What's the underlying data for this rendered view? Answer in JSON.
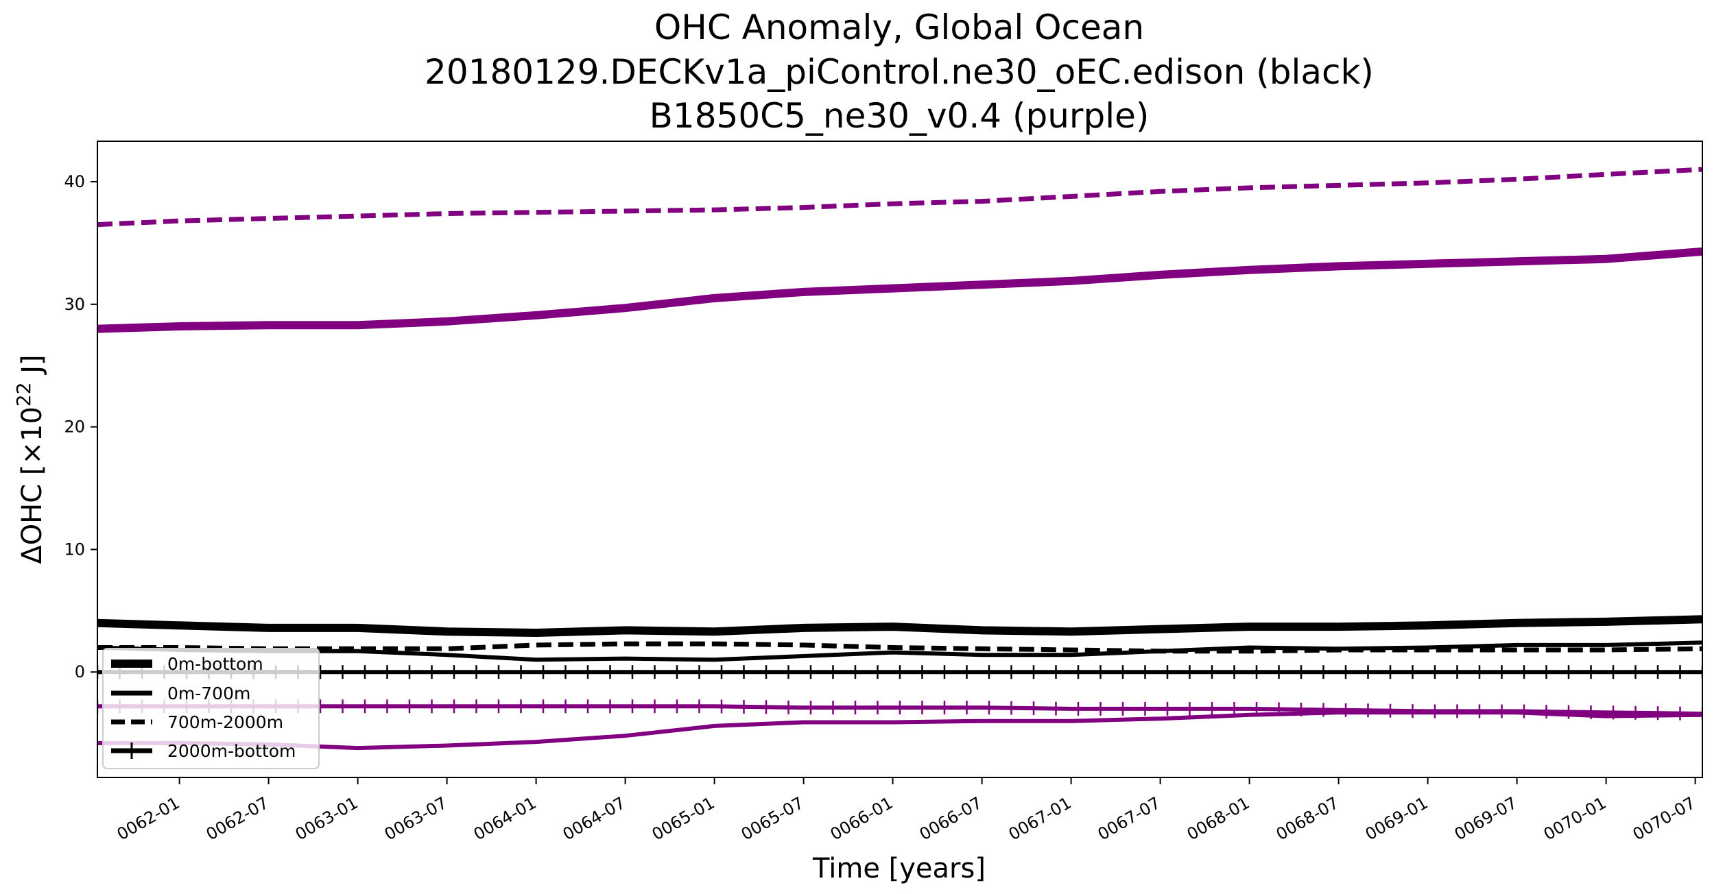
{
  "chart_data": {
    "type": "line",
    "title_lines": [
      "OHC Anomaly, Global Ocean",
      "20180129.DECKv1a_piControl.ne30_oEC.edison (black)",
      "B1850C5_ne30_v0.4 (purple)"
    ],
    "xlabel": "Time [years]",
    "ylabel_parts": {
      "main": "ΔOHC [×10",
      "sup": "22",
      "end": " J]"
    },
    "xlim": [
      61.54,
      70.54
    ],
    "ylim": [
      -8.6,
      43.3
    ],
    "x_ticks": [
      {
        "label": "0062-01",
        "value": 62.0
      },
      {
        "label": "0062-07",
        "value": 62.5
      },
      {
        "label": "0063-01",
        "value": 63.0
      },
      {
        "label": "0063-07",
        "value": 63.5
      },
      {
        "label": "0064-01",
        "value": 64.0
      },
      {
        "label": "0064-07",
        "value": 64.5
      },
      {
        "label": "0065-01",
        "value": 65.0
      },
      {
        "label": "0065-07",
        "value": 65.5
      },
      {
        "label": "0066-01",
        "value": 66.0
      },
      {
        "label": "0066-07",
        "value": 66.5
      },
      {
        "label": "0067-01",
        "value": 67.0
      },
      {
        "label": "0067-07",
        "value": 67.5
      },
      {
        "label": "0068-01",
        "value": 68.0
      },
      {
        "label": "0068-07",
        "value": 68.5
      },
      {
        "label": "0069-01",
        "value": 69.0
      },
      {
        "label": "0069-07",
        "value": 69.5
      },
      {
        "label": "0070-01",
        "value": 70.0
      },
      {
        "label": "0070-07",
        "value": 70.5
      }
    ],
    "y_ticks": [
      {
        "label": "0",
        "value": 0
      },
      {
        "label": "10",
        "value": 10
      },
      {
        "label": "20",
        "value": 20
      },
      {
        "label": "30",
        "value": 30
      },
      {
        "label": "40",
        "value": 40
      }
    ],
    "grid": false,
    "legend_position": "bottom-left",
    "legend": [
      {
        "label": "0m-bottom",
        "style": "solid-thick"
      },
      {
        "label": "0m-700m",
        "style": "solid"
      },
      {
        "label": "700m-2000m",
        "style": "dashed"
      },
      {
        "label": "2000m-bottom",
        "style": "plus-marker"
      }
    ],
    "colors": {
      "black": "#000000",
      "purple": "#800080"
    },
    "series": [
      {
        "group": "purple",
        "style": "dashed",
        "x": [
          61.54,
          62.0,
          62.5,
          63.0,
          63.5,
          64.0,
          64.5,
          65.0,
          65.5,
          66.0,
          66.5,
          67.0,
          67.5,
          68.0,
          68.5,
          69.0,
          69.5,
          70.0,
          70.54
        ],
        "y": [
          36.5,
          36.8,
          37.0,
          37.2,
          37.4,
          37.5,
          37.6,
          37.7,
          37.9,
          38.2,
          38.4,
          38.8,
          39.2,
          39.5,
          39.7,
          39.9,
          40.2,
          40.6,
          41.0
        ]
      },
      {
        "group": "purple",
        "style": "solid-thick",
        "x": [
          61.54,
          62.0,
          62.5,
          63.0,
          63.5,
          64.0,
          64.5,
          65.0,
          65.5,
          66.0,
          66.5,
          67.0,
          67.5,
          68.0,
          68.5,
          69.0,
          69.5,
          70.0,
          70.54
        ],
        "y": [
          28.0,
          28.2,
          28.3,
          28.3,
          28.6,
          29.1,
          29.7,
          30.5,
          31.0,
          31.3,
          31.6,
          31.9,
          32.4,
          32.8,
          33.1,
          33.3,
          33.5,
          33.7,
          34.3
        ]
      },
      {
        "group": "black",
        "style": "solid-thick",
        "x": [
          61.54,
          62.0,
          62.5,
          63.0,
          63.5,
          64.0,
          64.5,
          65.0,
          65.5,
          66.0,
          66.5,
          67.0,
          67.5,
          68.0,
          68.5,
          69.0,
          69.5,
          70.0,
          70.54
        ],
        "y": [
          4.0,
          3.8,
          3.6,
          3.6,
          3.3,
          3.2,
          3.4,
          3.3,
          3.6,
          3.7,
          3.4,
          3.3,
          3.5,
          3.7,
          3.7,
          3.8,
          4.0,
          4.1,
          4.3
        ]
      },
      {
        "group": "black",
        "style": "dashed",
        "x": [
          61.54,
          62.0,
          62.5,
          63.0,
          63.5,
          64.0,
          64.5,
          65.0,
          65.5,
          66.0,
          66.5,
          67.0,
          67.5,
          68.0,
          68.5,
          69.0,
          69.5,
          70.0,
          70.54
        ],
        "y": [
          2.0,
          2.0,
          1.9,
          1.9,
          1.9,
          2.2,
          2.3,
          2.3,
          2.2,
          2.0,
          1.9,
          1.8,
          1.7,
          1.7,
          1.8,
          1.8,
          1.8,
          1.8,
          1.9
        ]
      },
      {
        "group": "black",
        "style": "solid",
        "x": [
          61.54,
          62.0,
          62.5,
          63.0,
          63.5,
          64.0,
          64.5,
          65.0,
          65.5,
          66.0,
          66.5,
          67.0,
          67.5,
          68.0,
          68.5,
          69.0,
          69.5,
          70.0,
          70.54
        ],
        "y": [
          2.0,
          1.8,
          1.7,
          1.7,
          1.4,
          1.0,
          1.1,
          1.0,
          1.3,
          1.6,
          1.4,
          1.4,
          1.7,
          2.0,
          1.9,
          2.0,
          2.2,
          2.2,
          2.4
        ]
      },
      {
        "group": "black",
        "style": "plus-marker",
        "x": [
          61.54,
          62.0,
          62.5,
          63.0,
          63.5,
          64.0,
          64.5,
          65.0,
          65.5,
          66.0,
          66.5,
          67.0,
          67.5,
          68.0,
          68.5,
          69.0,
          69.5,
          70.0,
          70.54
        ],
        "y": [
          0.0,
          0.0,
          0.0,
          0.0,
          0.0,
          0.0,
          0.0,
          0.0,
          0.0,
          0.0,
          0.0,
          0.0,
          0.0,
          0.0,
          0.0,
          0.0,
          0.0,
          0.0,
          0.0
        ]
      },
      {
        "group": "purple",
        "style": "plus-marker",
        "x": [
          61.54,
          62.0,
          62.5,
          63.0,
          63.5,
          64.0,
          64.5,
          65.0,
          65.5,
          66.0,
          66.5,
          67.0,
          67.5,
          68.0,
          68.5,
          69.0,
          69.5,
          70.0,
          70.54
        ],
        "y": [
          -2.8,
          -2.8,
          -2.8,
          -2.8,
          -2.8,
          -2.8,
          -2.8,
          -2.8,
          -2.9,
          -2.9,
          -2.9,
          -3.0,
          -3.0,
          -3.0,
          -3.1,
          -3.2,
          -3.2,
          -3.3,
          -3.4
        ]
      },
      {
        "group": "purple",
        "style": "solid",
        "x": [
          61.54,
          62.0,
          62.5,
          63.0,
          63.5,
          64.0,
          64.5,
          65.0,
          65.5,
          66.0,
          66.5,
          67.0,
          67.5,
          68.0,
          68.5,
          69.0,
          69.5,
          70.0,
          70.54
        ],
        "y": [
          -5.8,
          -5.8,
          -5.9,
          -6.2,
          -6.0,
          -5.7,
          -5.2,
          -4.4,
          -4.1,
          -4.1,
          -4.0,
          -4.0,
          -3.8,
          -3.5,
          -3.3,
          -3.3,
          -3.3,
          -3.6,
          -3.5
        ]
      }
    ]
  }
}
